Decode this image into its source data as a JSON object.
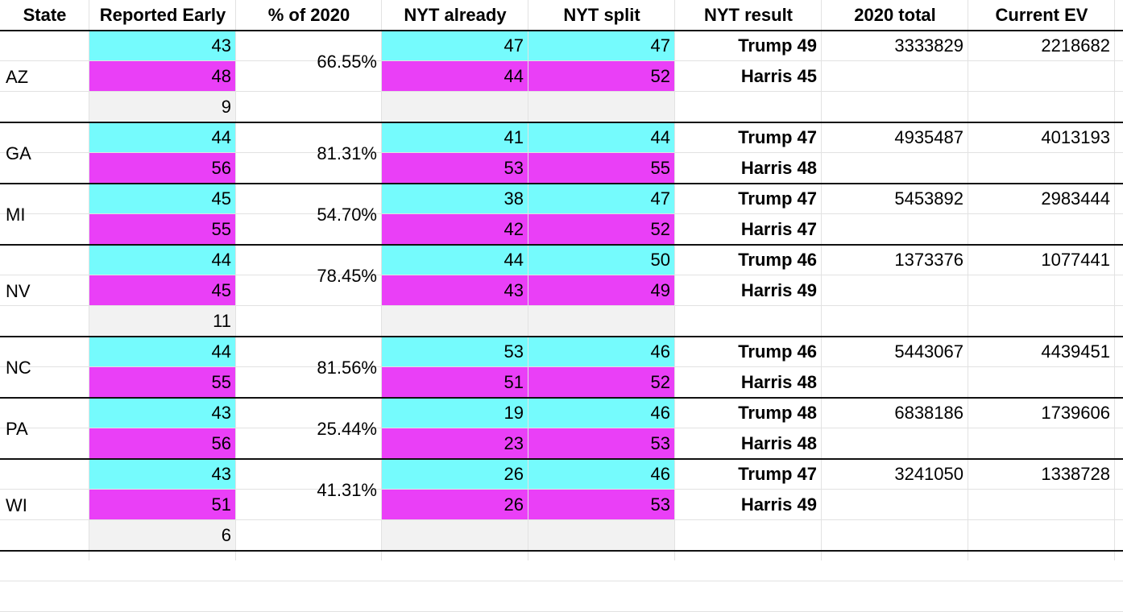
{
  "colors": {
    "trump": "#75fbfd",
    "harris": "#ea3ff7",
    "other": "#f2f2f2",
    "grid": "#e2e2e2",
    "border": "#111111"
  },
  "headers": [
    "State",
    "Reported Early",
    "% of 2020",
    "NYT already",
    "NYT split",
    "NYT result",
    "2020 total",
    "Current EV"
  ],
  "states": [
    {
      "state": "AZ",
      "early": [
        "43",
        "48",
        "9"
      ],
      "pct": "66.55%",
      "already": [
        "47",
        "44",
        ""
      ],
      "split": [
        "47",
        "52",
        ""
      ],
      "result": [
        "Trump 49",
        "Harris 45"
      ],
      "total2020": "3333829",
      "current_ev": "2218682"
    },
    {
      "state": "GA",
      "early": [
        "44",
        "56"
      ],
      "pct": "81.31%",
      "already": [
        "41",
        "53"
      ],
      "split": [
        "44",
        "55"
      ],
      "result": [
        "Trump 47",
        "Harris 48"
      ],
      "total2020": "4935487",
      "current_ev": "4013193"
    },
    {
      "state": "MI",
      "early": [
        "45",
        "55"
      ],
      "pct": "54.70%",
      "already": [
        "38",
        "42"
      ],
      "split": [
        "47",
        "52"
      ],
      "result": [
        "Trump 47",
        "Harris 47"
      ],
      "total2020": "5453892",
      "current_ev": "2983444"
    },
    {
      "state": "NV",
      "early": [
        "44",
        "45",
        "11"
      ],
      "pct": "78.45%",
      "already": [
        "44",
        "43",
        ""
      ],
      "split": [
        "50",
        "49",
        ""
      ],
      "result": [
        "Trump 46",
        "Harris 49"
      ],
      "total2020": "1373376",
      "current_ev": "1077441"
    },
    {
      "state": "NC",
      "early": [
        "44",
        "55"
      ],
      "pct": "81.56%",
      "already": [
        "53",
        "51"
      ],
      "split": [
        "46",
        "52"
      ],
      "result": [
        "Trump 46",
        "Harris 48"
      ],
      "total2020": "5443067",
      "current_ev": "4439451"
    },
    {
      "state": "PA",
      "early": [
        "43",
        "56"
      ],
      "pct": "25.44%",
      "already": [
        "19",
        "23"
      ],
      "split": [
        "46",
        "53"
      ],
      "result": [
        "Trump 48",
        "Harris 48"
      ],
      "total2020": "6838186",
      "current_ev": "1739606"
    },
    {
      "state": "WI",
      "early": [
        "43",
        "51",
        "6"
      ],
      "pct": "41.31%",
      "already": [
        "26",
        "26",
        ""
      ],
      "split": [
        "46",
        "53",
        ""
      ],
      "result": [
        "Trump 47",
        "Harris 49"
      ],
      "total2020": "3241050",
      "current_ev": "1338728"
    }
  ]
}
